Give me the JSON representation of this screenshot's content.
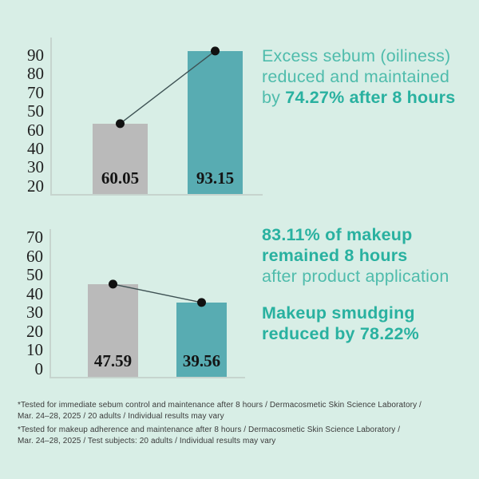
{
  "palette": {
    "background": "#d8eee6",
    "teal_bar": "#58acb2",
    "gray_bar": "#bababa",
    "axis_line": "#c6d4ce",
    "accent_text": "#4fbcac",
    "accent_text_bold": "#29b1a0",
    "dot": "#111111",
    "connector_line": "#3e5254",
    "bar_value_text": "#141414",
    "footnote_text": "#3a3a3a"
  },
  "chart_data": [
    {
      "type": "bar",
      "title": "",
      "xlabel": "",
      "ylabel": "",
      "grid": false,
      "legend": null,
      "ylim": [
        20,
        95
      ],
      "yticks": [
        "90",
        "80",
        "70",
        "50",
        "60",
        "40",
        "30",
        "20"
      ],
      "connector_line": true,
      "bars": [
        {
          "value": 60.05,
          "label": "60.05",
          "color_key": "gray_bar"
        },
        {
          "value": 93.15,
          "label": "93.15",
          "color_key": "teal_bar"
        }
      ]
    },
    {
      "type": "bar",
      "title": "",
      "xlabel": "",
      "ylabel": "",
      "grid": false,
      "legend": null,
      "ylim": [
        0,
        75
      ],
      "yticks": [
        "70",
        "60",
        "50",
        "40",
        "30",
        "20",
        "10",
        "0"
      ],
      "connector_line": true,
      "bars": [
        {
          "value": 47.59,
          "label": "47.59",
          "color_key": "gray_bar"
        },
        {
          "value": 39.56,
          "label": "39.56",
          "color_key": "teal_bar"
        }
      ]
    }
  ],
  "annotations": [
    {
      "lines": [
        [
          "Excess sebum (oiliness)"
        ],
        [
          "reduced and maintained"
        ],
        [
          "by ",
          "74.27% after 8 hours"
        ]
      ]
    },
    {
      "lines": [
        [
          "83.11% of makeup"
        ],
        [
          "remained 8 hours"
        ],
        [
          "after product application"
        ]
      ]
    },
    {
      "lines": [
        [
          "Makeup smudging"
        ],
        [
          "reduced by 78.22%"
        ]
      ]
    }
  ],
  "footnotes": [
    "*Tested for immediate sebum control and maintenance after 8 hours / Dermacosmetic Skin Science Laboratory /",
    "Mar. 24–28, 2025 / 20 adults / Individual results may vary",
    "*Tested for makeup adherence and maintenance after 8 hours / Dermacosmetic Skin Science Laboratory /",
    "Mar. 24–28, 2025 / Test subjects: 20 adults / Individual results may vary"
  ]
}
